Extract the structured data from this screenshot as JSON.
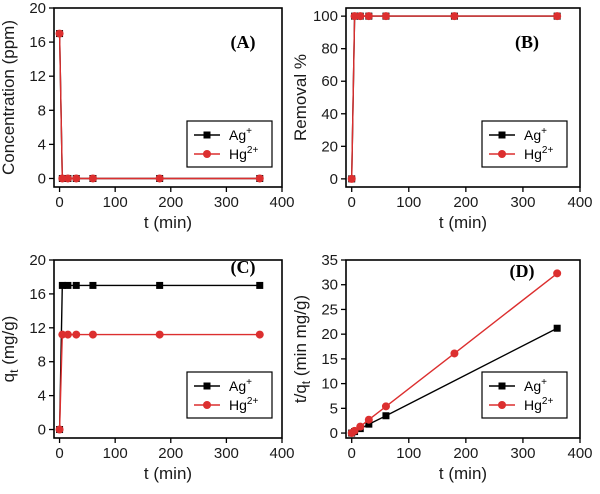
{
  "colors": {
    "ag": "#000000",
    "hg": "#dc2f2f"
  },
  "chart_data": [
    {
      "panel": "(A)",
      "type": "line",
      "xlabel": "t (min)",
      "ylabel": "Concentration (ppm)",
      "xlim": [
        -10,
        400
      ],
      "ylim": [
        -1,
        20
      ],
      "xticks": [
        0,
        100,
        200,
        300,
        400
      ],
      "yticks": [
        0,
        4,
        8,
        12,
        16,
        20
      ],
      "legend_position": "center-right",
      "series": [
        {
          "name": "Ag",
          "sup": "+",
          "marker": "square",
          "color": "#000000",
          "x": [
            0,
            5,
            15,
            30,
            60,
            180,
            360
          ],
          "y": [
            17.0,
            0,
            0,
            0,
            0,
            0,
            0
          ]
        },
        {
          "name": "Hg",
          "sup": "2+",
          "marker": "circle",
          "color": "#dc2f2f",
          "x": [
            0,
            5,
            15,
            30,
            60,
            180,
            360
          ],
          "y": [
            17.0,
            0,
            0,
            0,
            0,
            0,
            0
          ]
        }
      ]
    },
    {
      "panel": "(B)",
      "type": "line",
      "xlabel": "t (min)",
      "ylabel": "Removal %",
      "xlim": [
        -10,
        400
      ],
      "ylim": [
        -5,
        105
      ],
      "xticks": [
        0,
        100,
        200,
        300,
        400
      ],
      "yticks": [
        0,
        20,
        40,
        60,
        80,
        100
      ],
      "legend_position": "bottom-right",
      "series": [
        {
          "name": "Ag",
          "sup": "+",
          "marker": "square",
          "color": "#000000",
          "x": [
            0,
            5,
            15,
            30,
            60,
            180,
            360
          ],
          "y": [
            0,
            100,
            100,
            100,
            100,
            100,
            100
          ]
        },
        {
          "name": "Hg",
          "sup": "2+",
          "marker": "circle",
          "color": "#dc2f2f",
          "x": [
            0,
            5,
            15,
            30,
            60,
            180,
            360
          ],
          "y": [
            0,
            100,
            100,
            100,
            100,
            100,
            100
          ]
        }
      ]
    },
    {
      "panel": "(C)",
      "type": "line",
      "xlabel": "t (min)",
      "ylabel": "q",
      "ylabel_sub": "t",
      "ylabel_rest": " (mg/g)",
      "xlim": [
        -10,
        400
      ],
      "ylim": [
        -1,
        20
      ],
      "xticks": [
        0,
        100,
        200,
        300,
        400
      ],
      "yticks": [
        0,
        4,
        8,
        12,
        16,
        20
      ],
      "legend_position": "bottom-right",
      "series": [
        {
          "name": "Ag",
          "sup": "+",
          "marker": "square",
          "color": "#000000",
          "x": [
            0,
            5,
            15,
            30,
            60,
            180,
            360
          ],
          "y": [
            0,
            17.0,
            17.0,
            17.0,
            17.0,
            17.0,
            17.0
          ]
        },
        {
          "name": "Hg",
          "sup": "2+",
          "marker": "circle",
          "color": "#dc2f2f",
          "x": [
            0,
            5,
            15,
            30,
            60,
            180,
            360
          ],
          "y": [
            0,
            11.2,
            11.2,
            11.2,
            11.2,
            11.2,
            11.2
          ]
        }
      ]
    },
    {
      "panel": "(D)",
      "type": "line",
      "xlabel": "t (min)",
      "ylabel": "t/q",
      "ylabel_sub": "t",
      "ylabel_rest": " (min mg/g)",
      "xlim": [
        -10,
        400
      ],
      "ylim": [
        -1,
        35
      ],
      "xticks": [
        0,
        100,
        200,
        300,
        400
      ],
      "yticks": [
        0,
        5,
        10,
        15,
        20,
        25,
        30,
        35
      ],
      "legend_position": "bottom-right",
      "series": [
        {
          "name": "Ag",
          "sup": "+",
          "marker": "square",
          "color": "#000000",
          "x": [
            0,
            5,
            15,
            30,
            60,
            360
          ],
          "y": [
            0,
            0.3,
            0.9,
            1.8,
            3.5,
            21.2
          ]
        },
        {
          "name": "Hg",
          "sup": "2+",
          "marker": "circle",
          "color": "#dc2f2f",
          "x": [
            0,
            5,
            15,
            30,
            60,
            180,
            360
          ],
          "y": [
            0,
            0.45,
            1.3,
            2.7,
            5.4,
            16.1,
            32.3
          ]
        }
      ]
    }
  ]
}
